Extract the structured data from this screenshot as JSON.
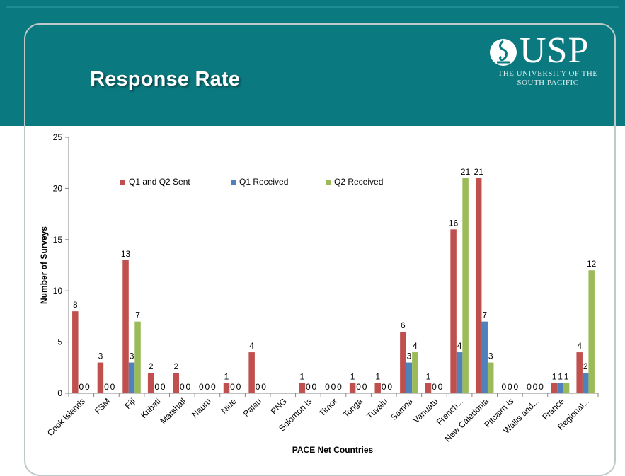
{
  "slide": {
    "title": "Response Rate",
    "logo": {
      "wordmark": "USP",
      "subtitle_line1": "THE UNIVERSITY OF THE",
      "subtitle_line2": "SOUTH PACIFIC"
    }
  },
  "colors": {
    "banner": "#0b7a80",
    "series": [
      "#c0504d",
      "#4f81bd",
      "#9bbb59"
    ]
  },
  "chart_data": {
    "type": "bar",
    "title": "",
    "xlabel": "PACE Net Countries",
    "ylabel": "Number of Surveys",
    "ylim": [
      0,
      25
    ],
    "yticks": [
      0,
      5,
      10,
      15,
      20,
      25
    ],
    "grid": false,
    "legend": "top-left",
    "categories": [
      "Cook Islands",
      "FSM",
      "Fiji",
      "Kribati",
      "Marshall",
      "Nauru",
      "Niue",
      "Palau",
      "PNG",
      "Solomon Is",
      "Timor",
      "Tonga",
      "Tuvalu",
      "Samoa",
      "Vanuatu",
      "French...",
      "New Caledonia",
      "Pitcairn Is",
      "Wallis and...",
      "France",
      "Regional..."
    ],
    "series": [
      {
        "name": "Q1 and Q2 Sent",
        "values": [
          8,
          3,
          13,
          2,
          2,
          0,
          1,
          4,
          null,
          1,
          0,
          1,
          1,
          6,
          1,
          16,
          21,
          0,
          0,
          1,
          4
        ]
      },
      {
        "name": "Q1 Received",
        "values": [
          0,
          0,
          3,
          0,
          0,
          0,
          0,
          0,
          null,
          0,
          0,
          0,
          0,
          3,
          0,
          4,
          7,
          0,
          0,
          1,
          2
        ]
      },
      {
        "name": "Q2 Received",
        "values": [
          0,
          0,
          7,
          0,
          0,
          0,
          0,
          0,
          null,
          0,
          0,
          0,
          0,
          4,
          0,
          21,
          3,
          0,
          0,
          1,
          12
        ]
      }
    ]
  }
}
